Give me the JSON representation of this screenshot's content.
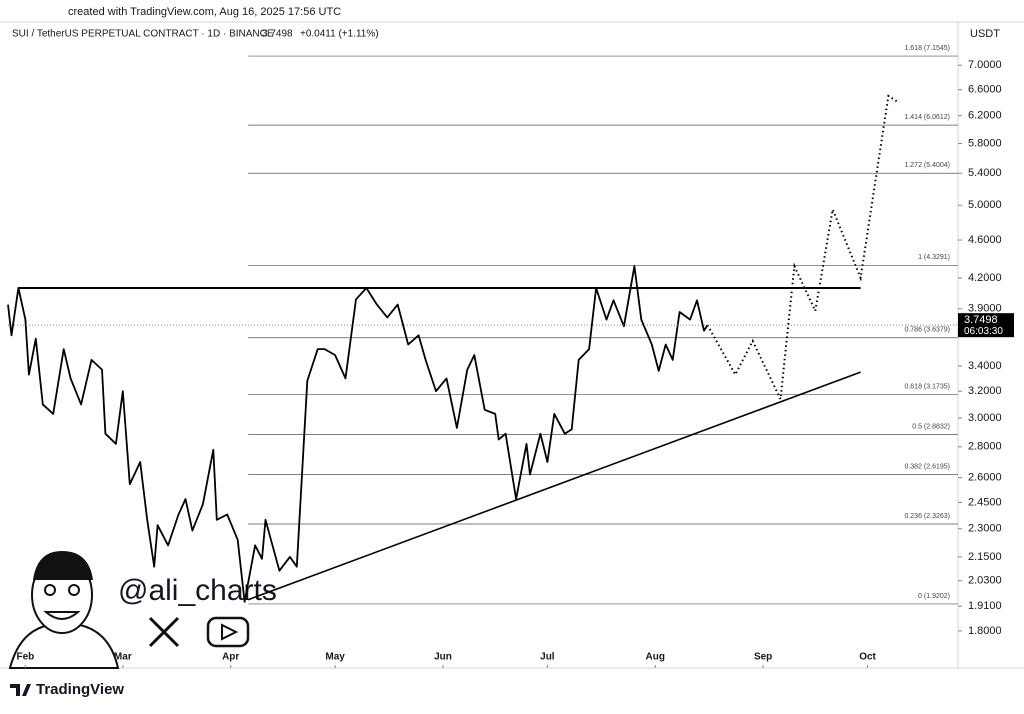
{
  "chart_data": {
    "type": "line",
    "credit": "created with TradingView.com, Aug 16, 2025 17:56 UTC",
    "symbol": "SUI / TetherUS PERPETUAL CONTRACT · 1D · BINANCE",
    "price_text": "3.7498",
    "change": "+0.0411 (+1.11%)",
    "currency": "USDT",
    "countdown": "06:03:30",
    "watermark": "@ali_charts",
    "brand": "TradingView",
    "last_price": 3.7498,
    "log_scale": true,
    "xlim": [
      27,
      300
    ],
    "xticks": [
      {
        "value": 32,
        "label": "Feb"
      },
      {
        "value": 60,
        "label": "Mar"
      },
      {
        "value": 91,
        "label": "Apr"
      },
      {
        "value": 121,
        "label": "May"
      },
      {
        "value": 152,
        "label": "Jun"
      },
      {
        "value": 182,
        "label": "Jul"
      },
      {
        "value": 213,
        "label": "Aug"
      },
      {
        "value": 244,
        "label": "Sep"
      },
      {
        "value": 274,
        "label": "Oct"
      }
    ],
    "ylim": [
      1.74,
      7.4
    ],
    "yticks": [
      {
        "value": 7,
        "label": "7.0000"
      },
      {
        "value": 6.6,
        "label": "6.6000"
      },
      {
        "value": 6.2,
        "label": "6.2000"
      },
      {
        "value": 5.8,
        "label": "5.8000"
      },
      {
        "value": 5.4,
        "label": "5.4000"
      },
      {
        "value": 5,
        "label": "5.0000"
      },
      {
        "value": 4.6,
        "label": "4.6000"
      },
      {
        "value": 4.2,
        "label": "4.2000"
      },
      {
        "value": 3.9,
        "label": "3.9000"
      },
      {
        "value": 3.4,
        "label": "3.4000"
      },
      {
        "value": 3.2,
        "label": "3.2000"
      },
      {
        "value": 3,
        "label": "3.0000"
      },
      {
        "value": 2.8,
        "label": "2.8000"
      },
      {
        "value": 2.6,
        "label": "2.6000"
      },
      {
        "value": 2.45,
        "label": "2.4500"
      },
      {
        "value": 2.3,
        "label": "2.3000"
      },
      {
        "value": 2.15,
        "label": "2.1500"
      },
      {
        "value": 2.03,
        "label": "2.0300"
      },
      {
        "value": 1.91,
        "label": "1.9100"
      },
      {
        "value": 1.8,
        "label": "1.8000"
      }
    ],
    "series": [
      {
        "color": "#000000",
        "style": "solid",
        "x": [
          27,
          28,
          30,
          32,
          33,
          35,
          37,
          40,
          43,
          45,
          48,
          51,
          54,
          55,
          58,
          60,
          62,
          65,
          67,
          69,
          70,
          73,
          76,
          78,
          80,
          83,
          86,
          87,
          90,
          93,
          95,
          98,
          100,
          101,
          105,
          108,
          110,
          113,
          116,
          118,
          121,
          124,
          127,
          130,
          133,
          136,
          139,
          142,
          145,
          147,
          150,
          153,
          156,
          159,
          161,
          164,
          167,
          168,
          170,
          173,
          176,
          177,
          180,
          182,
          184,
          187,
          189,
          191,
          194,
          196,
          199,
          201,
          204,
          207,
          209,
          212,
          214,
          216,
          218,
          220,
          223,
          225,
          227,
          228
        ],
        "values": [
          3.94,
          3.66,
          4.1,
          3.8,
          3.33,
          3.63,
          3.1,
          3.03,
          3.54,
          3.3,
          3.1,
          3.45,
          3.37,
          2.89,
          2.82,
          3.2,
          2.56,
          2.7,
          2.35,
          2.1,
          2.32,
          2.21,
          2.38,
          2.47,
          2.29,
          2.44,
          2.78,
          2.35,
          2.38,
          2.24,
          1.93,
          2.21,
          2.14,
          2.35,
          2.08,
          2.15,
          2.1,
          3.28,
          3.54,
          3.54,
          3.49,
          3.3,
          3.99,
          4.1,
          3.94,
          3.82,
          3.94,
          3.58,
          3.66,
          3.45,
          3.2,
          3.3,
          2.93,
          3.37,
          3.49,
          3.06,
          3.03,
          2.85,
          2.89,
          2.47,
          2.82,
          2.62,
          2.89,
          2.7,
          3.03,
          2.89,
          2.92,
          3.45,
          3.54,
          4.1,
          3.8,
          3.98,
          3.74,
          4.32,
          3.8,
          3.58,
          3.36,
          3.58,
          3.45,
          3.87,
          3.8,
          3.98,
          3.7,
          3.75
        ]
      },
      {
        "color": "#000000",
        "style": "dotted",
        "x": [
          228,
          236,
          241,
          249,
          253,
          259,
          264,
          272,
          280,
          283
        ],
        "values": [
          3.75,
          3.33,
          3.61,
          3.14,
          4.32,
          3.88,
          4.95,
          4.2,
          6.5,
          6.4
        ]
      }
    ],
    "trendlines": [
      {
        "color": "#000000",
        "x": [
          30,
          272
        ],
        "values": [
          4.1,
          4.1
        ]
      },
      {
        "color": "#000000",
        "x": [
          96,
          272
        ],
        "values": [
          1.94,
          3.35
        ]
      }
    ],
    "fib_start": 96,
    "fib_levels": [
      {
        "value": 7.1545,
        "label": "1.618 (7.1545)"
      },
      {
        "value": 6.0612,
        "label": "1.414 (6.0612)"
      },
      {
        "value": 5.4004,
        "label": "1.272 (5.4004)"
      },
      {
        "value": 4.3291,
        "label": "1 (4.3291)"
      },
      {
        "value": 3.6379,
        "label": "0.786 (3.6379)"
      },
      {
        "value": 3.1735,
        "label": "0.618 (3.1735)"
      },
      {
        "value": 2.8832,
        "label": "0.5 (2.8832)"
      },
      {
        "value": 2.6195,
        "label": "0.382 (2.6195)"
      },
      {
        "value": 2.3263,
        "label": "0.236 (2.3263)"
      },
      {
        "value": 1.9202,
        "label": "0 (1.9202)"
      }
    ]
  }
}
